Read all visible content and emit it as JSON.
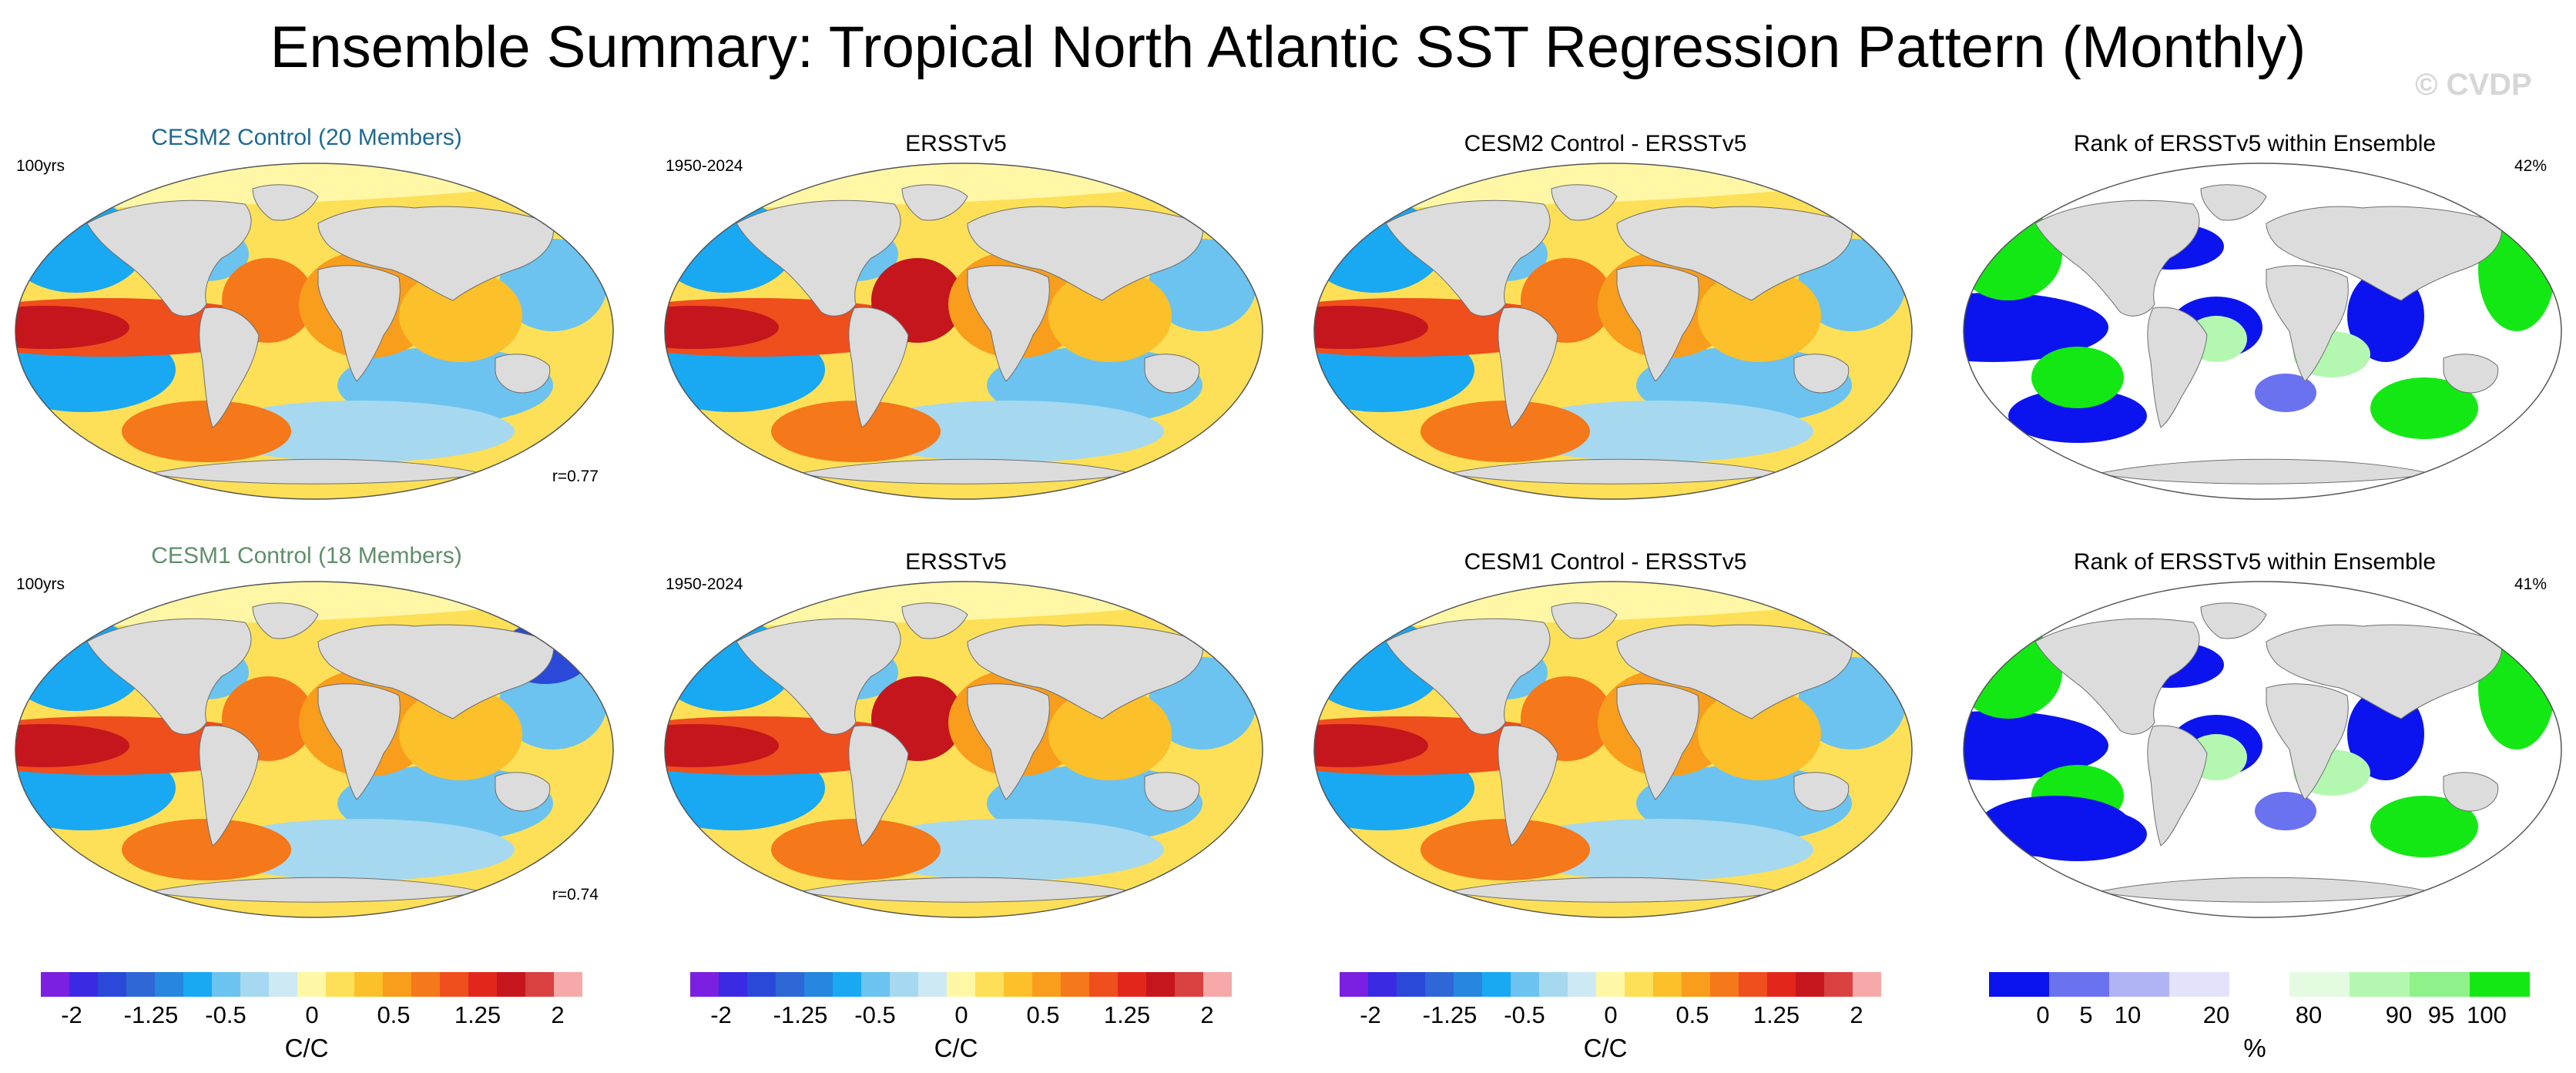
{
  "title": "Ensemble Summary: Tropical North Atlantic SST Regression Pattern (Monthly)",
  "watermark": "© CVDP",
  "rows": [
    {
      "panels": [
        {
          "title": "CESM2 Control (20 Members)",
          "left_text": "100yrs",
          "bottom_right_text": "r=0.77",
          "kind": "model"
        },
        {
          "title": "ERSSTv5",
          "left_text": "1950-2024",
          "kind": "obs"
        },
        {
          "title": "CESM2 Control - ERSSTv5",
          "kind": "diff"
        },
        {
          "title": "Rank of ERSSTv5 within Ensemble",
          "right_text": "42%",
          "kind": "rank"
        }
      ]
    },
    {
      "panels": [
        {
          "title": "CESM1 Control (18 Members)",
          "left_text": "100yrs",
          "bottom_right_text": "r=0.74",
          "kind": "model"
        },
        {
          "title": "ERSSTv5",
          "left_text": "1950-2024",
          "kind": "obs"
        },
        {
          "title": "CESM1 Control - ERSSTv5",
          "kind": "diff"
        },
        {
          "title": "Rank of ERSSTv5 within Ensemble",
          "right_text": "41%",
          "kind": "rank"
        }
      ]
    }
  ],
  "colorbars": {
    "sst": {
      "unit": "C/C",
      "ticks": [
        "-2",
        "-1.25",
        "-0.5",
        "0",
        "0.5",
        "1.25",
        "2"
      ],
      "colors": [
        "#7b1fe0",
        "#3a2ae3",
        "#2a49d8",
        "#2f67d6",
        "#2686e0",
        "#19a8f2",
        "#6cc3ef",
        "#a6d8ef",
        "#cde9f3",
        "#fff7a6",
        "#fde057",
        "#fbc02a",
        "#f99d1c",
        "#f5781a",
        "#ef4e1d",
        "#e3261b",
        "#c4161c",
        "#d94040",
        "#f6a9a9"
      ]
    },
    "rank": {
      "unit": "%",
      "ticks": [
        "0",
        "5",
        "10",
        "20",
        "80",
        "90",
        "95",
        "100"
      ],
      "colors": [
        "#0b14ee",
        "#6b72f0",
        "#b0b4f5",
        "#e2e3fb",
        "#ffffff",
        "#e4fbe2",
        "#b4f7b0",
        "#8ff18a",
        "#14e814"
      ]
    }
  }
}
